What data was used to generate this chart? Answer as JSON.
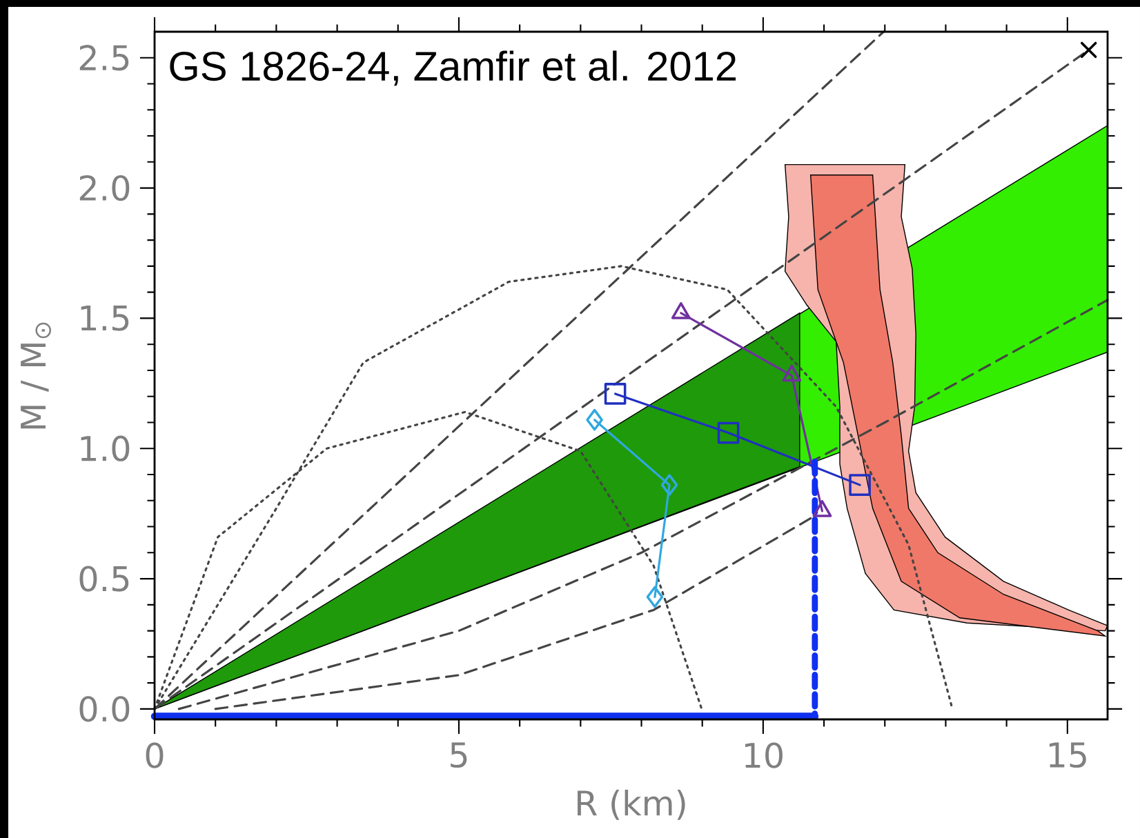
{
  "chart_data": {
    "type": "line",
    "xlabel": "R (km)",
    "ylabel": "M / M$_{⊙}$",
    "annotations": [
      "GS 1826-24, Zamfir et al. 2012"
    ],
    "xlim": [
      0,
      15.66
    ],
    "ylim": [
      -0.04,
      2.6
    ],
    "xticks": [
      0,
      5,
      10,
      15
    ],
    "yticks": [
      {
        "value": 0,
        "label": "0.0"
      },
      {
        "value": 0.5,
        "label": "0.5"
      },
      {
        "value": 1,
        "label": "1.0"
      },
      {
        "value": 1.5,
        "label": "1.5"
      },
      {
        "value": 2,
        "label": "2.0"
      },
      {
        "value": 2.5,
        "label": "2.5"
      }
    ],
    "series": [
      {
        "type": "area",
        "color": "#33ee00",
        "x": [
          0,
          15.66,
          15.66
        ],
        "values": [
          0,
          2.24,
          1.37
        ]
      },
      {
        "type": "area",
        "color": "#1f9a0a",
        "x": [
          0,
          10.6,
          10.6
        ],
        "values": [
          0,
          1.52,
          0.93
        ]
      },
      {
        "type": "area",
        "color": "#f6b4ac",
        "x": [
          10.36,
          10.42,
          10.36,
          10.72,
          11.2,
          11.26,
          11.26,
          11.38,
          11.68,
          12.15,
          13.35,
          15.62,
          15.66,
          15.02,
          13.95,
          12.99,
          12.51,
          12.39,
          12.49,
          12.51,
          12.45,
          12.27,
          12.33
        ],
        "values": [
          2.09,
          1.89,
          1.68,
          1.55,
          1.41,
          1.16,
          0.94,
          0.77,
          0.52,
          0.38,
          0.33,
          0.3,
          0.32,
          0.38,
          0.49,
          0.66,
          0.83,
          0.99,
          1.16,
          1.44,
          1.69,
          1.89,
          2.09
        ]
      },
      {
        "type": "area",
        "color": "#f07868",
        "x": [
          10.78,
          10.9,
          11.32,
          11.56,
          11.8,
          12.27,
          13.23,
          15.62,
          15.5,
          13.95,
          12.87,
          12.39,
          12.27,
          12.13,
          11.92,
          11.8
        ],
        "values": [
          2.05,
          1.61,
          1.33,
          1.05,
          0.77,
          0.49,
          0.35,
          0.28,
          0.3,
          0.44,
          0.6,
          0.77,
          1.05,
          1.33,
          1.61,
          2.05
        ]
      },
      {
        "color": "#444444",
        "line_style": "dashed",
        "x": [
          0,
          11.98
        ],
        "values": [
          0,
          2.6
        ]
      },
      {
        "color": "#444444",
        "line_style": "dashed",
        "x": [
          0,
          15.35
        ],
        "values": [
          0,
          2.53
        ]
      },
      {
        "color": "#444444",
        "line_style": "dashed",
        "x": [
          0.4,
          5,
          8,
          10,
          12,
          15.66
        ],
        "values": [
          0,
          0.3,
          0.6,
          0.85,
          1.1,
          1.57
        ]
      },
      {
        "color": "#444444",
        "line_style": "dashed",
        "x": [
          1.0,
          5,
          8.2,
          10.84
        ],
        "values": [
          0,
          0.13,
          0.38,
          0.74
        ]
      },
      {
        "color": "#444444",
        "line_style": "dotted",
        "x": [
          0,
          2.0,
          3.43,
          5.82,
          7.67,
          9.41,
          11.2,
          12.39,
          13.11
        ],
        "values": [
          0,
          0.77,
          1.33,
          1.64,
          1.7,
          1.61,
          1.16,
          0.63,
          0
        ]
      },
      {
        "color": "#444444",
        "line_style": "dotted",
        "x": [
          0,
          1.04,
          2.83,
          5.1,
          7.0,
          8.2,
          8.99
        ],
        "values": [
          0,
          0.66,
          1.0,
          1.14,
          0.99,
          0.55,
          0
        ]
      },
      {
        "color": "#7030a0",
        "marker": "triangle",
        "x": [
          8.65,
          10.47,
          10.97
        ],
        "values": [
          1.52,
          1.28,
          0.76
        ]
      },
      {
        "color": "#2030c0",
        "marker": "square",
        "x": [
          7.57,
          9.43,
          11.59
        ],
        "values": [
          1.21,
          1.06,
          0.86
        ]
      },
      {
        "color": "#30a8e0",
        "marker": "diamond",
        "x": [
          7.23,
          8.46,
          8.22
        ],
        "values": [
          1.11,
          0.86,
          0.43
        ]
      },
      {
        "type": "scatter",
        "color": "#000000",
        "marker": "cross",
        "x": [
          15.35
        ],
        "values": [
          2.53
        ]
      },
      {
        "color": "#1030f0",
        "line_style": "dashed",
        "x": [
          10.85,
          10.85
        ],
        "values": [
          0.95,
          -0.028
        ]
      },
      {
        "color": "#1030f0",
        "x": [
          0,
          10.85
        ],
        "values": [
          -0.028,
          -0.028
        ]
      }
    ]
  }
}
